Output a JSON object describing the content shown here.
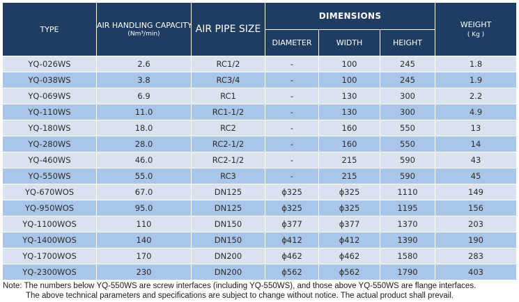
{
  "headers": {
    "type": "TYPE",
    "air_handling_capacity": "AIR HANDLING CAPACITY",
    "air_handling_unit": "(Nm³/min)",
    "air_pipe_size": "AIR PIPE SIZE",
    "dimensions": "DIMENSIONS",
    "diameter": "DIAMETER",
    "width": "WIDTH",
    "height": "HEIGHT",
    "weight": "WEIGHT",
    "weight_unit": "( Kg )"
  },
  "rows": [
    {
      "type": "YQ-026WS",
      "capacity": "2.6",
      "pipe": "RC1/2",
      "diameter": "-",
      "width": "100",
      "height": "245",
      "weight": "1.8"
    },
    {
      "type": "YQ-038WS",
      "capacity": "3.8",
      "pipe": "RC3/4",
      "diameter": "-",
      "width": "100",
      "height": "245",
      "weight": "1.9"
    },
    {
      "type": "YQ-069WS",
      "capacity": "6.9",
      "pipe": "RC1",
      "diameter": "-",
      "width": "130",
      "height": "300",
      "weight": "2.2"
    },
    {
      "type": "YQ-110WS",
      "capacity": "11.0",
      "pipe": "RC1-1/2",
      "diameter": "-",
      "width": "130",
      "height": "300",
      "weight": "4.9"
    },
    {
      "type": "YQ-180WS",
      "capacity": "18.0",
      "pipe": "RC2",
      "diameter": "-",
      "width": "160",
      "height": "550",
      "weight": "13"
    },
    {
      "type": "YQ-280WS",
      "capacity": "28.0",
      "pipe": "RC2-1/2",
      "diameter": "-",
      "width": "160",
      "height": "550",
      "weight": "14"
    },
    {
      "type": "YQ-460WS",
      "capacity": "46.0",
      "pipe": "RC2-1/2",
      "diameter": "-",
      "width": "215",
      "height": "590",
      "weight": "43"
    },
    {
      "type": "YQ-550WS",
      "capacity": "55.0",
      "pipe": "RC3",
      "diameter": "-",
      "width": "215",
      "height": "590",
      "weight": "45"
    },
    {
      "type": "YQ-670WOS",
      "capacity": "67.0",
      "pipe": "DN125",
      "diameter": "ϕ325",
      "width": "ϕ325",
      "height": "1110",
      "weight": "149"
    },
    {
      "type": "YQ-950WOS",
      "capacity": "95.0",
      "pipe": "DN125",
      "diameter": "ϕ325",
      "width": "ϕ325",
      "height": "1195",
      "weight": "156"
    },
    {
      "type": "YQ-1100WOS",
      "capacity": "110",
      "pipe": "DN150",
      "diameter": "ϕ377",
      "width": "ϕ377",
      "height": "1370",
      "weight": "203"
    },
    {
      "type": "YQ-1400WOS",
      "capacity": "140",
      "pipe": "DN150",
      "diameter": "ϕ412",
      "width": "ϕ412",
      "height": "1390",
      "weight": "190"
    },
    {
      "type": "YQ-1700WOS",
      "capacity": "170",
      "pipe": "DN200",
      "diameter": "ϕ462",
      "width": "ϕ462",
      "height": "1580",
      "weight": "283"
    },
    {
      "type": "YQ-2300WOS",
      "capacity": "230",
      "pipe": "DN200",
      "diameter": "ϕ562",
      "width": "ϕ562",
      "height": "1790",
      "weight": "403"
    }
  ],
  "note": {
    "line1": "Note: The numbers below YQ-550WS are screw interfaces (including YQ-550WS), and those above YQ-550WS are flange interfaces.",
    "line2": "The above technical parameters and specifications are subject to change without notice. The actual product shall prevail."
  },
  "colors": {
    "header_bg": "#1f3d63",
    "row_light": "#d9e2ee",
    "row_blue": "#a9c6e8"
  }
}
